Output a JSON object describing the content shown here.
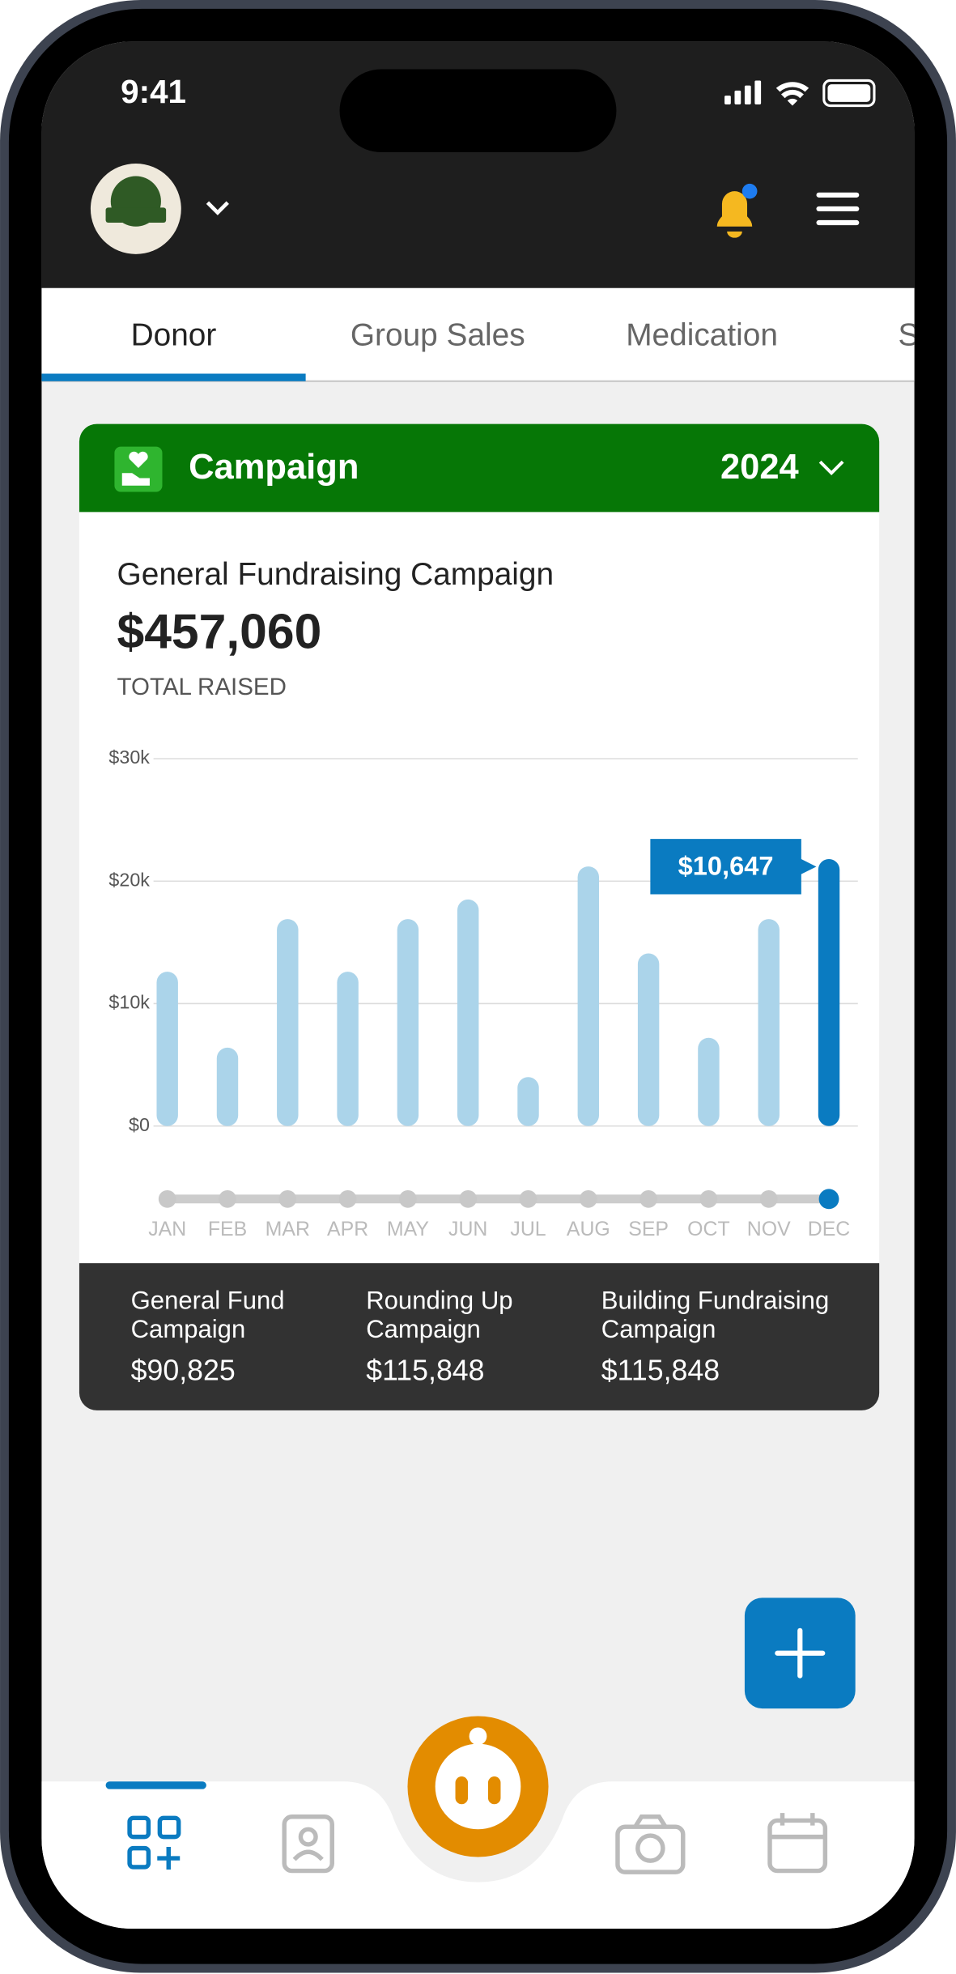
{
  "status_bar": {
    "time": "9:41"
  },
  "tabs": [
    "Donor",
    "Group Sales",
    "Medication",
    "S"
  ],
  "card": {
    "header_title": "Campaign",
    "year": "2024",
    "campaign_title": "General Fundraising Campaign",
    "total": "$457,060",
    "total_label": "TOTAL RAISED",
    "tooltip": "$10,647"
  },
  "chart_data": {
    "type": "bar",
    "categories": [
      "JAN",
      "FEB",
      "MAR",
      "APR",
      "MAY",
      "JUN",
      "JUL",
      "AUG",
      "SEP",
      "OCT",
      "NOV",
      "DEC"
    ],
    "values": [
      12600,
      6400,
      16900,
      12600,
      16900,
      18500,
      4000,
      21200,
      14100,
      7200,
      16900,
      21800
    ],
    "color": "#abd4ea",
    "highlight_color": "#0a7bc1",
    "ylim": [
      0,
      30000
    ],
    "yticks": [
      {
        "value": 0,
        "label": "$0"
      },
      {
        "value": 10000,
        "label": "$10k"
      },
      {
        "value": 20000,
        "label": "$20k"
      },
      {
        "value": 30000,
        "label": "$30k"
      }
    ],
    "grid": true
  },
  "summary": [
    {
      "name": [
        "General Fund",
        "Campaign"
      ],
      "value": "$90,825"
    },
    {
      "name": [
        "Rounding Up",
        "Campaign"
      ],
      "value": "$115,848"
    },
    {
      "name": [
        "Building Fundraising",
        "Campaign"
      ],
      "value": "$115,848"
    }
  ]
}
